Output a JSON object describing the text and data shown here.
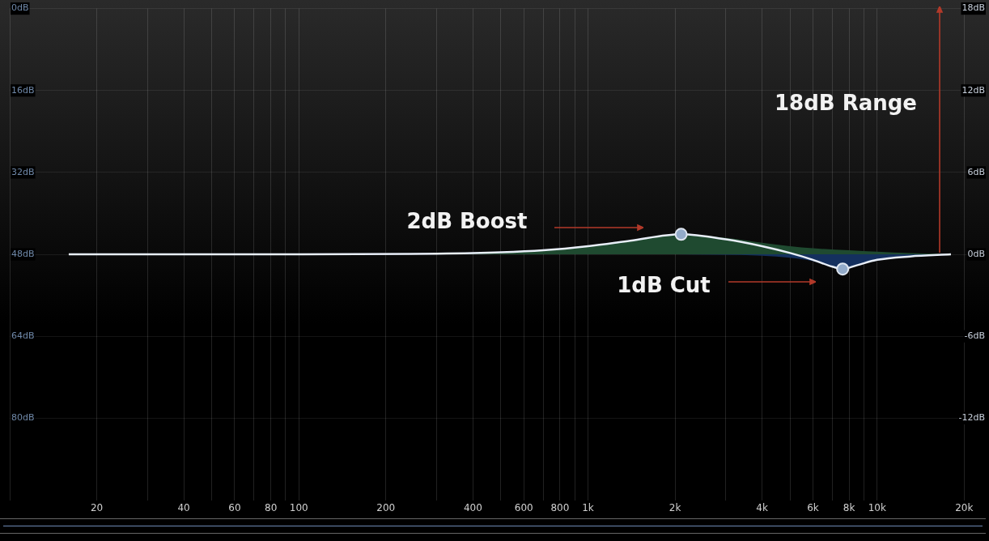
{
  "chart_data": {
    "type": "line",
    "log": "x",
    "grid": true,
    "legend": false,
    "xlim": [
      10,
      23000
    ],
    "xticks": [
      {
        "value": 10,
        "label": null
      },
      20,
      {
        "value": 30,
        "label": null
      },
      40,
      {
        "value": 50,
        "label": null
      },
      60,
      {
        "value": 70,
        "label": null
      },
      80,
      {
        "value": 90,
        "label": null
      },
      100,
      200,
      {
        "value": 300,
        "label": null
      },
      400,
      {
        "value": 500,
        "label": null
      },
      600,
      {
        "value": 700,
        "label": null
      },
      800,
      {
        "value": 900,
        "label": null
      },
      {
        "value": 1000,
        "label": "1k"
      },
      {
        "value": 2000,
        "label": "2k"
      },
      {
        "value": 3000,
        "label": null
      },
      {
        "value": 4000,
        "label": "4k"
      },
      {
        "value": 5000,
        "label": null
      },
      {
        "value": 6000,
        "label": "6k"
      },
      {
        "value": 7000,
        "label": null
      },
      {
        "value": 8000,
        "label": "8k"
      },
      {
        "value": 9000,
        "label": null
      },
      {
        "value": 10000,
        "label": "10k"
      },
      {
        "value": 20000,
        "label": "20k"
      }
    ],
    "ylim": [
      -18,
      18
    ],
    "yticks": [
      {
        "value": -12,
        "label": "-12dB"
      },
      {
        "value": -6,
        "label": "-6dB"
      },
      {
        "value": 0,
        "label": "0dB"
      },
      {
        "value": 6,
        "label": "6dB"
      },
      {
        "value": 12,
        "label": "12dB"
      },
      {
        "value": 18,
        "label": "18dB"
      }
    ],
    "y2lim": [
      -96,
      0
    ],
    "y2ticks": [
      {
        "value": -80,
        "label": "80dB"
      },
      {
        "value": -64,
        "label": "64dB"
      },
      {
        "value": -48,
        "label": "48dB"
      },
      {
        "value": -32,
        "label": "32dB"
      },
      {
        "value": -16,
        "label": "16dB"
      },
      {
        "value": 0,
        "label": "0dB"
      }
    ],
    "series": [
      {
        "type": "area",
        "color": "#1f4a30",
        "x": [
          16,
          300,
          500,
          700,
          1000,
          1400,
          2100,
          3000,
          4000,
          5000,
          6000,
          8000,
          10000,
          13000,
          18000
        ],
        "values": [
          0,
          0.05,
          0.15,
          0.3,
          0.6,
          1.0,
          1.47,
          1.2,
          0.85,
          0.6,
          0.45,
          0.3,
          0.2,
          0.1,
          0
        ]
      },
      {
        "type": "area",
        "color": "#14305e",
        "x": [
          2000,
          4000,
          5000,
          6000,
          7000,
          7600,
          8500,
          10000,
          13000,
          18000
        ],
        "values": [
          0,
          -0.1,
          -0.25,
          -0.5,
          -0.9,
          -1.07,
          -0.8,
          -0.45,
          -0.15,
          0
        ]
      },
      {
        "type": "line",
        "color": "#e8eef8",
        "x": [
          16,
          100,
          300,
          500,
          700,
          1000,
          1400,
          2100,
          3000,
          4000,
          5000,
          6000,
          7000,
          7600,
          8500,
          10000,
          13000,
          18000
        ],
        "values": [
          0,
          0,
          0.05,
          0.15,
          0.3,
          0.6,
          1.0,
          1.47,
          1.1,
          0.6,
          0.1,
          -0.4,
          -0.9,
          -1.07,
          -0.8,
          -0.4,
          -0.15,
          0
        ]
      },
      {
        "type": "scatter",
        "color": "#93abc9",
        "marker": "circle",
        "x": [
          2100,
          7600
        ],
        "values": [
          1.47,
          -1.07
        ]
      }
    ],
    "annotations": [
      "2dB Boost",
      "1dB Cut",
      "18dB Range"
    ]
  }
}
